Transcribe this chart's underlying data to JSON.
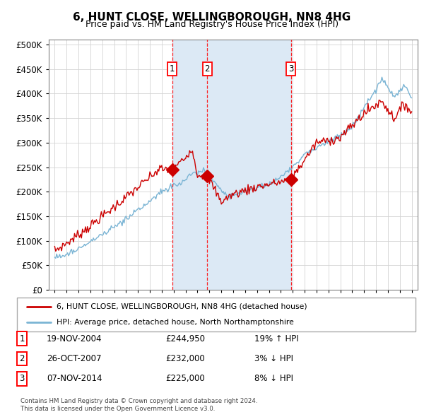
{
  "title": "6, HUNT CLOSE, WELLINGBOROUGH, NN8 4HG",
  "subtitle": "Price paid vs. HM Land Registry's House Price Index (HPI)",
  "legend_line1": "6, HUNT CLOSE, WELLINGBOROUGH, NN8 4HG (detached house)",
  "legend_line2": "HPI: Average price, detached house, North Northamptonshire",
  "footer1": "Contains HM Land Registry data © Crown copyright and database right 2024.",
  "footer2": "This data is licensed under the Open Government Licence v3.0.",
  "sale_points": [
    {
      "label": "1",
      "date": "19-NOV-2004",
      "price": 244950,
      "x_year": 2004.88
    },
    {
      "label": "2",
      "date": "26-OCT-2007",
      "price": 232000,
      "x_year": 2007.82
    },
    {
      "label": "3",
      "date": "07-NOV-2014",
      "price": 225000,
      "x_year": 2014.85
    }
  ],
  "sale_info": [
    {
      "num": "1",
      "date": "19-NOV-2004",
      "price": "£244,950",
      "hpi": "19% ↑ HPI"
    },
    {
      "num": "2",
      "date": "26-OCT-2007",
      "price": "£232,000",
      "hpi": "3% ↓ HPI"
    },
    {
      "num": "3",
      "date": "07-NOV-2014",
      "price": "£225,000",
      "hpi": "8% ↓ HPI"
    }
  ],
  "hpi_color": "#7ab4d4",
  "sale_color": "#cc0000",
  "shade_color": "#dce9f5",
  "ylim": [
    0,
    510000
  ],
  "yticks": [
    0,
    50000,
    100000,
    150000,
    200000,
    250000,
    300000,
    350000,
    400000,
    450000,
    500000
  ],
  "xlim_start": 1994.5,
  "xlim_end": 2025.5,
  "shade_x1": 2004.88,
  "shade_x2": 2014.85
}
